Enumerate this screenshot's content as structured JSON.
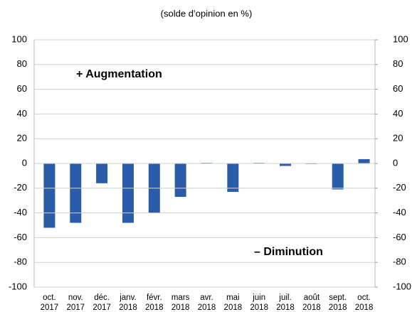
{
  "chart_data": {
    "type": "bar",
    "title": "(solde d’opinion en %)",
    "categories": [
      "oct. 2017",
      "nov. 2017",
      "déc. 2017",
      "janv. 2018",
      "févr. 2018",
      "mars 2018",
      "avr. 2018",
      "mai 2018",
      "juin 2018",
      "juil. 2018",
      "août 2018",
      "sept. 2018",
      "oct. 2018"
    ],
    "values": [
      -52,
      -48,
      -16,
      -48,
      -40,
      -27,
      0.5,
      -23,
      0.5,
      -2,
      0,
      -21,
      3.5
    ],
    "color": "#2a5caa",
    "ylim": [
      -100,
      100
    ],
    "yticks": [
      -100,
      -80,
      -60,
      -40,
      -20,
      0,
      20,
      40,
      60,
      80,
      100
    ],
    "y2lim": [
      -100,
      100
    ],
    "y2ticks": [
      -100,
      -80,
      -60,
      -40,
      -20,
      0,
      20,
      40,
      60,
      80,
      100
    ],
    "grid": true,
    "annotations": [
      "+ Augmentation",
      "– Diminution"
    ]
  }
}
